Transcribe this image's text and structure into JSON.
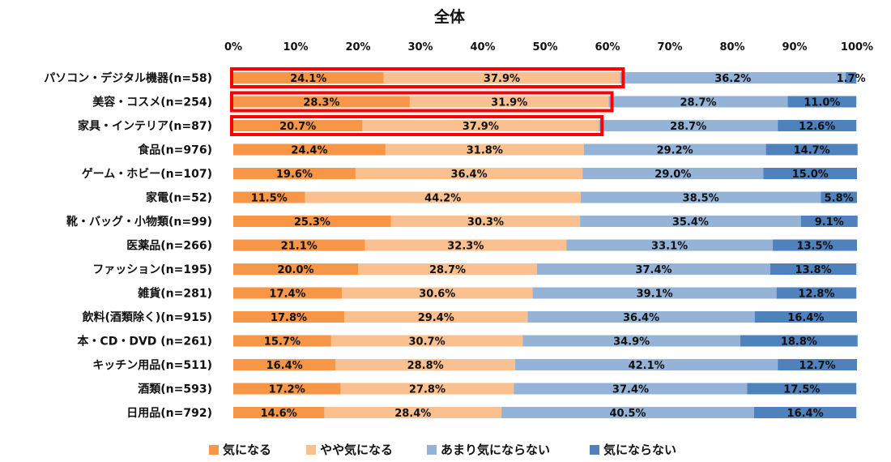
{
  "chart_data": {
    "type": "bar",
    "orientation": "horizontal",
    "stacked": true,
    "percent": true,
    "title": "全体",
    "xlim": [
      0,
      100
    ],
    "x_ticks": [
      "0%",
      "10%",
      "20%",
      "30%",
      "40%",
      "50%",
      "60%",
      "70%",
      "80%",
      "90%",
      "100%"
    ],
    "legend_position": "bottom",
    "grid": false,
    "categories": [
      "パソコン・デジタル機器(n=58)",
      "美容・コスメ(n=254)",
      "家具・インテリア(n=87)",
      "食品(n=976)",
      "ゲーム・ホビー(n=107)",
      "家電(n=52)",
      "靴・バッグ・小物類(n=99)",
      "医薬品(n=266)",
      "ファッション(n=195)",
      "雑貨(n=281)",
      "飲料(酒類除く)(n=915)",
      "本・CD・DVD (n=261)",
      "キッチン用品(n=511)",
      "酒類(n=593)",
      "日用品(n=792)"
    ],
    "highlighted_categories": [
      0,
      1,
      2
    ],
    "highlight_color": "#ff0000",
    "series": [
      {
        "name": "気になる",
        "color": "#f79646",
        "values": [
          24.1,
          28.3,
          20.7,
          24.4,
          19.6,
          11.5,
          25.3,
          21.1,
          20.0,
          17.4,
          17.8,
          15.7,
          16.4,
          17.2,
          14.6
        ]
      },
      {
        "name": "やや気になる",
        "color": "#fac090",
        "values": [
          37.9,
          31.9,
          37.9,
          31.8,
          36.4,
          44.2,
          30.3,
          32.3,
          28.7,
          30.6,
          29.4,
          30.7,
          28.8,
          27.8,
          28.4
        ]
      },
      {
        "name": "あまり気にならない",
        "color": "#95b3d7",
        "values": [
          36.2,
          28.7,
          28.7,
          29.2,
          29.0,
          38.5,
          35.4,
          33.1,
          37.4,
          39.1,
          36.4,
          34.9,
          42.1,
          37.4,
          40.5
        ]
      },
      {
        "name": "気にならない",
        "color": "#4f81bd",
        "values": [
          1.7,
          11.0,
          12.6,
          14.7,
          15.0,
          5.8,
          9.1,
          13.5,
          13.8,
          12.8,
          16.4,
          18.8,
          12.7,
          17.5,
          16.4
        ]
      }
    ]
  }
}
